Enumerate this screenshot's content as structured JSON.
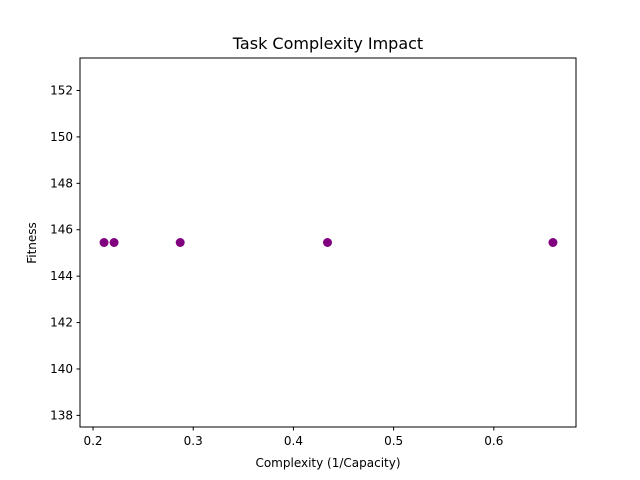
{
  "chart_data": {
    "type": "scatter",
    "title": "Task Complexity Impact",
    "xlabel": "Complexity (1/Capacity)",
    "ylabel": "Fitness",
    "x": [
      0.211,
      0.221,
      0.287,
      0.434,
      0.659
    ],
    "y": [
      145.45,
      145.45,
      145.45,
      145.45,
      145.45
    ],
    "xlim": [
      0.187,
      0.682
    ],
    "ylim": [
      137.5,
      153.4
    ],
    "xticks": [
      0.2,
      0.3,
      0.4,
      0.5,
      0.6
    ],
    "xtick_labels": [
      "0.2",
      "0.3",
      "0.4",
      "0.5",
      "0.6"
    ],
    "yticks": [
      138,
      140,
      142,
      144,
      146,
      148,
      150,
      152
    ],
    "ytick_labels": [
      "138",
      "140",
      "142",
      "144",
      "146",
      "148",
      "150",
      "152"
    ],
    "marker_color": "#800080",
    "grid": false,
    "legend": "none"
  }
}
